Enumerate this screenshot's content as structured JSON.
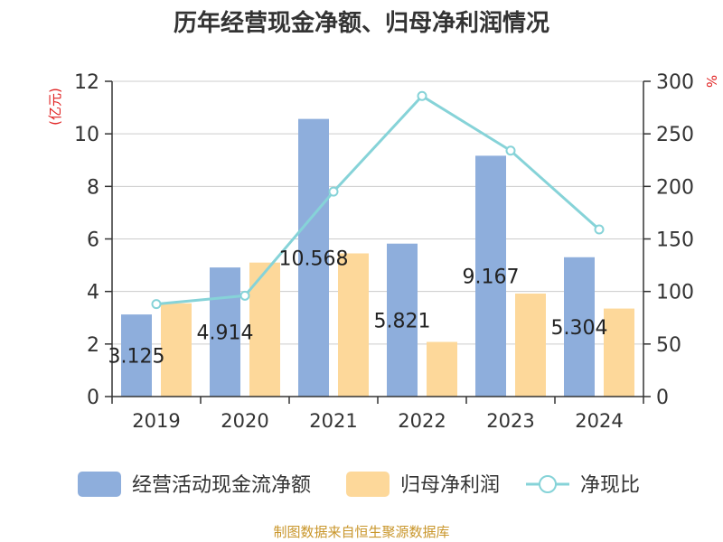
{
  "chart_data": {
    "type": "bar",
    "title": "历年经营现金净额、归母净利润情况",
    "categories": [
      "2019",
      "2020",
      "2021",
      "2022",
      "2023",
      "2024"
    ],
    "series": [
      {
        "name": "经营活动现金流净额",
        "type": "bar",
        "axis": "left",
        "color": "#8eaedc",
        "values": [
          3.125,
          4.914,
          10.568,
          5.821,
          9.167,
          5.304
        ],
        "labels": [
          "3.125",
          "4.914",
          "10.568",
          "5.821",
          "9.167",
          "5.304"
        ]
      },
      {
        "name": "归母净利润",
        "type": "bar",
        "axis": "left",
        "color": "#fdd89a",
        "values": [
          3.55,
          5.1,
          5.45,
          2.08,
          3.92,
          3.35
        ]
      },
      {
        "name": "净现比",
        "type": "line",
        "axis": "right",
        "color": "#86d3d8",
        "values": [
          88,
          96,
          195,
          286,
          234,
          159
        ]
      }
    ],
    "left_axis": {
      "label": "(亿元)",
      "ylim": [
        0,
        12
      ],
      "ticks": [
        "0",
        "2",
        "4",
        "6",
        "8",
        "10",
        "12"
      ]
    },
    "right_axis": {
      "label": "%",
      "ylim": [
        0,
        300
      ],
      "ticks": [
        "0",
        "50",
        "100",
        "150",
        "200",
        "250",
        "300"
      ]
    },
    "grid": true,
    "legend_position": "bottom"
  },
  "footer": {
    "source": "制图数据来自恒生聚源数据库"
  }
}
